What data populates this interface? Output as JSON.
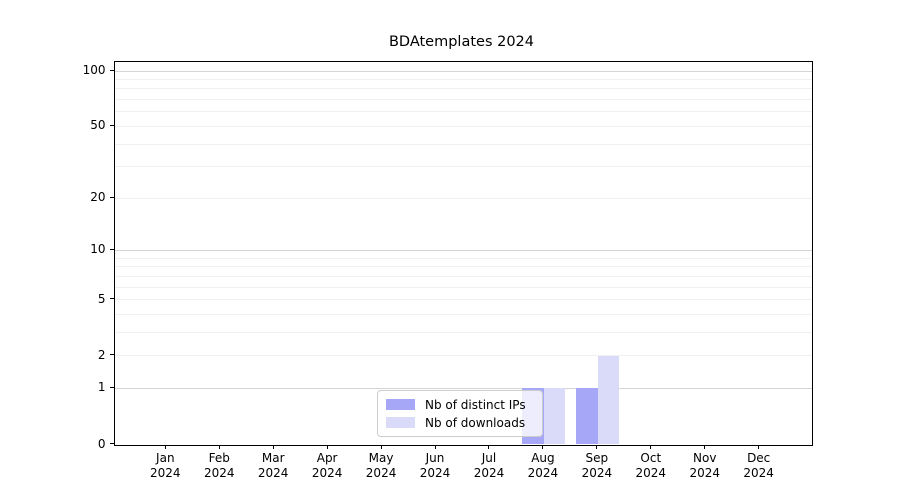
{
  "chart_data": {
    "type": "bar",
    "title": "BDAtemplates 2024",
    "categories": [
      "Jan 2024",
      "Feb 2024",
      "Mar 2024",
      "Apr 2024",
      "May 2024",
      "Jun 2024",
      "Jul 2024",
      "Aug 2024",
      "Sep 2024",
      "Oct 2024",
      "Nov 2024",
      "Dec 2024"
    ],
    "series": [
      {
        "name": "Nb of distinct IPs",
        "color": "#a7a7f7",
        "values": [
          0,
          0,
          0,
          0,
          0,
          0,
          0,
          1,
          1,
          0,
          0,
          0
        ]
      },
      {
        "name": "Nb of downloads",
        "color": "#dadaf9",
        "values": [
          0,
          0,
          0,
          0,
          0,
          0,
          0,
          1,
          2,
          0,
          0,
          0
        ]
      }
    ],
    "xlabel": "",
    "ylabel": "",
    "yscale": "log1p",
    "ylim": [
      0,
      112
    ],
    "yticks": [
      0,
      1,
      2,
      5,
      10,
      20,
      50,
      100
    ],
    "gridlines": {
      "major": [
        1,
        10,
        100
      ],
      "minor": [
        2,
        3,
        4,
        5,
        6,
        7,
        8,
        9,
        20,
        30,
        40,
        50,
        60,
        70,
        80,
        90
      ]
    },
    "legend": {
      "position": "lower center",
      "labels": [
        "Nb of distinct IPs",
        "Nb of downloads"
      ]
    },
    "colors": {
      "grid_major": "#d4d4d4",
      "grid_minor": "#f1f1f1",
      "spine": "#000000"
    }
  }
}
